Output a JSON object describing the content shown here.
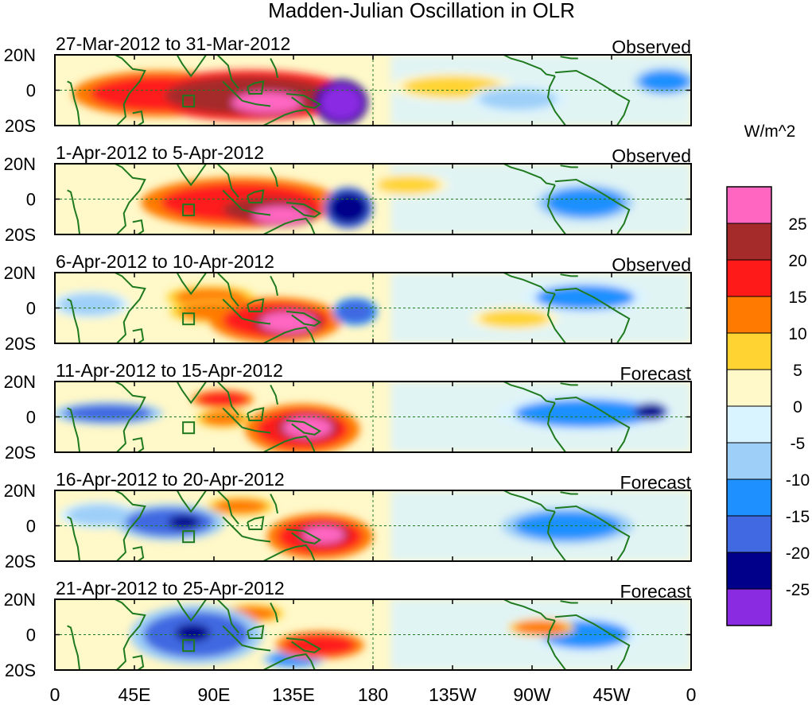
{
  "chart_data": {
    "type": "heatmap",
    "title": "Madden-Julian Oscillation in OLR",
    "units": "W/m^2",
    "colorbar": {
      "tick_labels": [
        "25",
        "20",
        "15",
        "10",
        "5",
        "0",
        "-5",
        "-10",
        "-15",
        "-20",
        "-25"
      ],
      "levels": [
        -25,
        -20,
        -15,
        -10,
        -5,
        0,
        5,
        10,
        15,
        20,
        25
      ],
      "colors": [
        "#8a2be2",
        "#00008b",
        "#4169e1",
        "#1e90ff",
        "#9ecff8",
        "#d9f3ff",
        "#fff8c8",
        "#ffd432",
        "#ff7a00",
        "#ff1a1a",
        "#a52a2a",
        "#ff66c2"
      ]
    },
    "x_range": [
      0,
      360
    ],
    "y_range": [
      -20,
      20
    ],
    "x_ticks": [
      {
        "lon": 0,
        "label": "0"
      },
      {
        "lon": 45,
        "label": "45E"
      },
      {
        "lon": 90,
        "label": "90E"
      },
      {
        "lon": 135,
        "label": "135E"
      },
      {
        "lon": 180,
        "label": "180"
      },
      {
        "lon": 225,
        "label": "135W"
      },
      {
        "lon": 270,
        "label": "90W"
      },
      {
        "lon": 315,
        "label": "45W"
      },
      {
        "lon": 360,
        "label": "0"
      }
    ],
    "y_ticks": [
      {
        "lat": 20,
        "label": "20N"
      },
      {
        "lat": 0,
        "label": "0"
      },
      {
        "lat": -20,
        "label": "20S"
      }
    ],
    "panels": [
      {
        "period": "27-Mar-2012 to 31-Mar-2012",
        "type": "Observed",
        "anomalies": [
          {
            "lon": 110,
            "lat": -3,
            "rx": 48,
            "ry": 11,
            "value": 22
          },
          {
            "lon": 60,
            "lat": -2,
            "rx": 40,
            "ry": 10,
            "value": 16
          },
          {
            "lon": 120,
            "lat": -7,
            "rx": 20,
            "ry": 6,
            "value": 27
          },
          {
            "lon": 162,
            "lat": -7,
            "rx": 12,
            "ry": 10,
            "value": -27
          },
          {
            "lon": 262,
            "lat": -5,
            "rx": 22,
            "ry": 6,
            "value": -8
          },
          {
            "lon": 345,
            "lat": 5,
            "rx": 14,
            "ry": 6,
            "value": -12
          },
          {
            "lon": 225,
            "lat": 2,
            "rx": 28,
            "ry": 6,
            "value": 6
          }
        ]
      },
      {
        "period": "1-Apr-2012 to 5-Apr-2012",
        "type": "Observed",
        "anomalies": [
          {
            "lon": 105,
            "lat": -2,
            "rx": 45,
            "ry": 11,
            "value": 16
          },
          {
            "lon": 120,
            "lat": -6,
            "rx": 25,
            "ry": 7,
            "value": 22
          },
          {
            "lon": 128,
            "lat": -9,
            "rx": 16,
            "ry": 5,
            "value": 27
          },
          {
            "lon": 166,
            "lat": -5,
            "rx": 11,
            "ry": 9,
            "value": -23
          },
          {
            "lon": 300,
            "lat": -2,
            "rx": 22,
            "ry": 8,
            "value": -12
          },
          {
            "lon": 200,
            "lat": 8,
            "rx": 18,
            "ry": 5,
            "value": 5
          }
        ]
      },
      {
        "period": "6-Apr-2012 to 10-Apr-2012",
        "type": "Observed",
        "anomalies": [
          {
            "lon": 125,
            "lat": -7,
            "rx": 30,
            "ry": 10,
            "value": 16
          },
          {
            "lon": 132,
            "lat": -8,
            "rx": 16,
            "ry": 6,
            "value": 26
          },
          {
            "lon": 88,
            "lat": 6,
            "rx": 20,
            "ry": 5,
            "value": 14
          },
          {
            "lon": 90,
            "lat": -2,
            "rx": 20,
            "ry": 5,
            "value": 14
          },
          {
            "lon": 170,
            "lat": -2,
            "rx": 10,
            "ry": 6,
            "value": -18
          },
          {
            "lon": 20,
            "lat": 2,
            "rx": 18,
            "ry": 6,
            "value": -8
          },
          {
            "lon": 300,
            "lat": 6,
            "rx": 28,
            "ry": 7,
            "value": -11
          },
          {
            "lon": 260,
            "lat": -6,
            "rx": 20,
            "ry": 5,
            "value": 6
          }
        ]
      },
      {
        "period": "11-Apr-2012 to 15-Apr-2012",
        "type": "Forecast",
        "anomalies": [
          {
            "lon": 140,
            "lat": -7,
            "rx": 26,
            "ry": 11,
            "value": 16
          },
          {
            "lon": 143,
            "lat": -6,
            "rx": 14,
            "ry": 6,
            "value": 26
          },
          {
            "lon": 95,
            "lat": 10,
            "rx": 14,
            "ry": 4,
            "value": 16
          },
          {
            "lon": 95,
            "lat": -1,
            "rx": 12,
            "ry": 4,
            "value": 14
          },
          {
            "lon": 30,
            "lat": 2,
            "rx": 25,
            "ry": 5,
            "value": -16
          },
          {
            "lon": 300,
            "lat": 2,
            "rx": 40,
            "ry": 8,
            "value": -11
          },
          {
            "lon": 337,
            "lat": 3,
            "rx": 8,
            "ry": 4,
            "value": -22
          }
        ]
      },
      {
        "period": "16-Apr-2012 to 20-Apr-2012",
        "type": "Forecast",
        "anomalies": [
          {
            "lon": 150,
            "lat": -6,
            "rx": 24,
            "ry": 10,
            "value": 16
          },
          {
            "lon": 152,
            "lat": -5,
            "rx": 12,
            "ry": 5,
            "value": 26
          },
          {
            "lon": 105,
            "lat": 11,
            "rx": 15,
            "ry": 4,
            "value": 14
          },
          {
            "lon": 65,
            "lat": 2,
            "rx": 25,
            "ry": 8,
            "value": -16
          },
          {
            "lon": 73,
            "lat": 2,
            "rx": 9,
            "ry": 4,
            "value": -22
          },
          {
            "lon": 290,
            "lat": 0,
            "rx": 30,
            "ry": 8,
            "value": -12
          },
          {
            "lon": 25,
            "lat": 6,
            "rx": 18,
            "ry": 6,
            "value": -8
          }
        ]
      },
      {
        "period": "21-Apr-2012 to 25-Apr-2012",
        "type": "Forecast",
        "anomalies": [
          {
            "lon": 80,
            "lat": 0,
            "rx": 30,
            "ry": 13,
            "value": -16
          },
          {
            "lon": 78,
            "lat": 1,
            "rx": 10,
            "ry": 5,
            "value": -23
          },
          {
            "lon": 150,
            "lat": -6,
            "rx": 20,
            "ry": 6,
            "value": 16
          },
          {
            "lon": 112,
            "lat": 12,
            "rx": 14,
            "ry": 4,
            "value": 14
          },
          {
            "lon": 275,
            "lat": 4,
            "rx": 15,
            "ry": 4,
            "value": 14
          },
          {
            "lon": 300,
            "lat": 0,
            "rx": 25,
            "ry": 8,
            "value": -11
          },
          {
            "lon": 135,
            "lat": -14,
            "rx": 14,
            "ry": 4,
            "value": -12
          }
        ]
      }
    ]
  }
}
